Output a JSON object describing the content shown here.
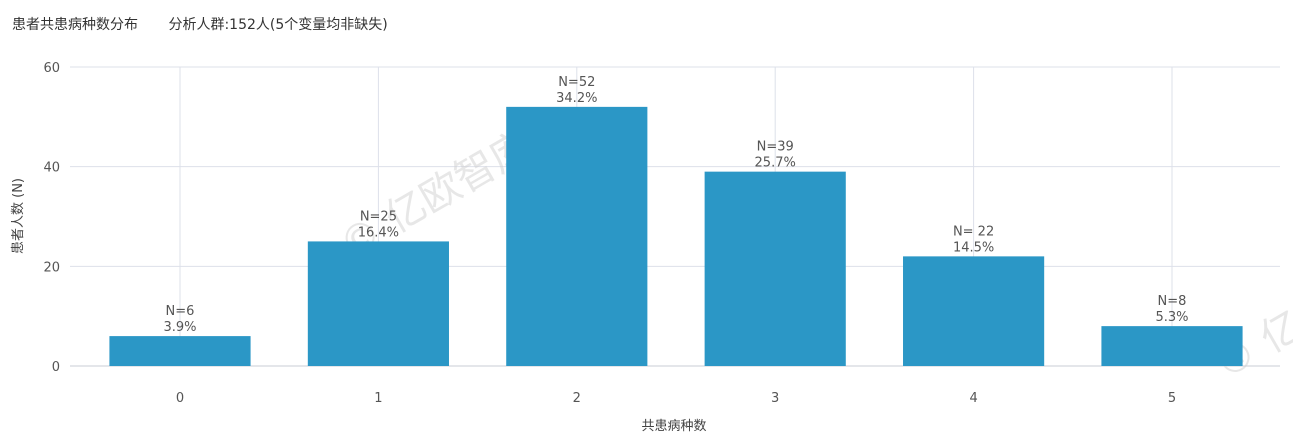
{
  "header": {
    "title": "患者共患病种数分布",
    "subtitle": "分析人群:152人(5个变量均非缺失)"
  },
  "watermark": {
    "text": "© 亿欧智库",
    "text2": "© 亿"
  },
  "colors": {
    "bar": "#2b97c6",
    "grid": "#dde0ea",
    "axis": "#c8ccd6"
  },
  "chart_data": {
    "type": "bar",
    "categories": [
      "0",
      "1",
      "2",
      "3",
      "4",
      "5"
    ],
    "values": [
      6,
      25,
      52,
      39,
      22,
      8
    ],
    "label_counts": [
      "N=6",
      "N=25",
      "N=52",
      "N=39",
      "N= 22",
      "N=8"
    ],
    "label_pcts": [
      "3.9%",
      "16.4%",
      "34.2%",
      "25.7%",
      "14.5%",
      "5.3%"
    ],
    "xlabel": "共患病种数",
    "ylabel": "患者人数 (N)",
    "ylim": [
      0,
      60
    ],
    "yticks": [
      0,
      20,
      40,
      60
    ],
    "grid": true
  }
}
